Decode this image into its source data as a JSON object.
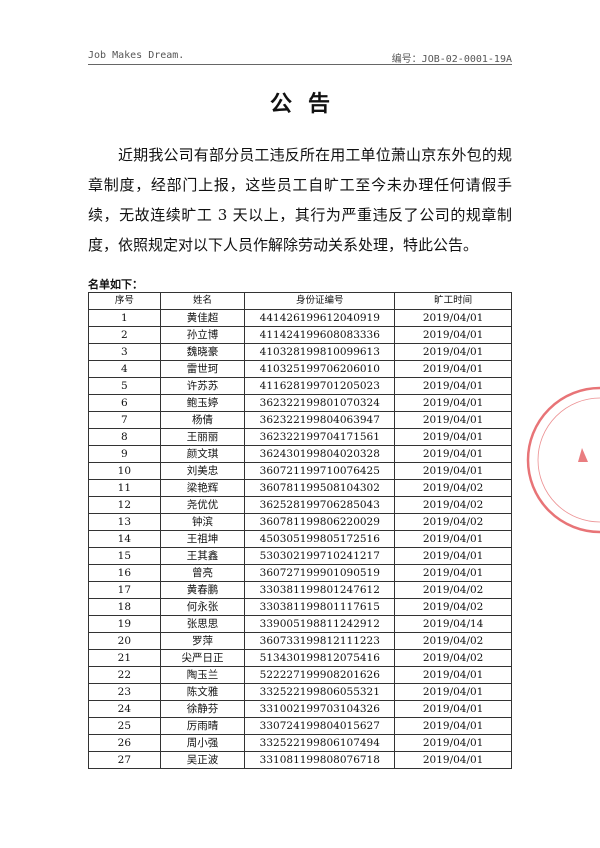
{
  "header": {
    "left": "Job Makes Dream.",
    "right": "编号：JOB-02-0001-19A"
  },
  "title": "公告",
  "body": "近期我公司有部分员工违反所在用工单位萧山京东外包的规章制度，经部门上报，这些员工自旷工至今未办理任何请假手续，无故连续旷工 3 天以上，其行为严重违反了公司的规章制度，依照规定对以下人员作解除劳动关系处理，特此公告。",
  "list_label": "名单如下：",
  "table": {
    "header": [
      "序号",
      "姓名",
      "身份证编号",
      "旷工时间"
    ],
    "rows": [
      [
        "1",
        "黄佳超",
        "441426199612040919",
        "2019/04/01"
      ],
      [
        "2",
        "孙立博",
        "411424199608083336",
        "2019/04/01"
      ],
      [
        "3",
        "魏晓豪",
        "410328199810099613",
        "2019/04/01"
      ],
      [
        "4",
        "雷世珂",
        "410325199706206010",
        "2019/04/01"
      ],
      [
        "5",
        "许苏苏",
        "411628199701205023",
        "2019/04/01"
      ],
      [
        "6",
        "鲍玉婷",
        "362322199801070324",
        "2019/04/01"
      ],
      [
        "7",
        "杨倩",
        "362322199804063947",
        "2019/04/01"
      ],
      [
        "8",
        "王丽丽",
        "362322199704171561",
        "2019/04/01"
      ],
      [
        "9",
        "颜文琪",
        "362430199804020328",
        "2019/04/01"
      ],
      [
        "10",
        "刘美忠",
        "360721199710076425",
        "2019/04/01"
      ],
      [
        "11",
        "梁艳辉",
        "360781199508104302",
        "2019/04/02"
      ],
      [
        "12",
        "尧优优",
        "362528199706285043",
        "2019/04/02"
      ],
      [
        "13",
        "钟滨",
        "360781199806220029",
        "2019/04/02"
      ],
      [
        "14",
        "王祖坤",
        "450305199805172516",
        "2019/04/01"
      ],
      [
        "15",
        "王其鑫",
        "530302199710241217",
        "2019/04/01"
      ],
      [
        "16",
        "曾亮",
        "360727199901090519",
        "2019/04/01"
      ],
      [
        "17",
        "黄春鹏",
        "330381199801247612",
        "2019/04/02"
      ],
      [
        "18",
        "何永张",
        "330381199801117615",
        "2019/04/02"
      ],
      [
        "19",
        "张思思",
        "339005198811242912",
        "2019/04/14"
      ],
      [
        "20",
        "罗萍",
        "360733199812111223",
        "2019/04/02"
      ],
      [
        "21",
        "尖严日正",
        "513430199812075416",
        "2019/04/02"
      ],
      [
        "22",
        "陶玉兰",
        "522227199908201626",
        "2019/04/01"
      ],
      [
        "23",
        "陈文雅",
        "332522199806055321",
        "2019/04/01"
      ],
      [
        "24",
        "徐静芬",
        "331002199703104326",
        "2019/04/01"
      ],
      [
        "25",
        "厉雨晴",
        "330724199804015627",
        "2019/04/01"
      ],
      [
        "26",
        "周小强",
        "332522199806107494",
        "2019/04/01"
      ],
      [
        "27",
        "吴正波",
        "331081199808076718",
        "2019/04/01"
      ]
    ]
  }
}
